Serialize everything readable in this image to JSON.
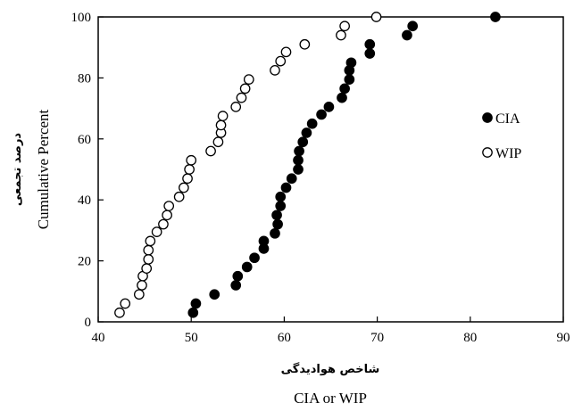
{
  "chart_data": {
    "type": "scatter",
    "xlabel": "CIA or WIP",
    "xlabel_fa": "شاخص هوادیدگی",
    "ylabel": "Cumulative Percent",
    "ylabel_fa": "درصد تجمعی",
    "xlim": [
      40,
      90
    ],
    "ylim": [
      0,
      100
    ],
    "x_ticks": [
      "40",
      "50",
      "60",
      "70",
      "80",
      "90"
    ],
    "y_ticks": [
      "0",
      "20",
      "40",
      "60",
      "80",
      "100"
    ],
    "legend_position": "right",
    "series": [
      {
        "name": "CIA",
        "marker": "filled-circle",
        "color": "#000000",
        "points": [
          [
            50.2,
            3
          ],
          [
            50.5,
            6
          ],
          [
            52.5,
            9
          ],
          [
            54.8,
            12
          ],
          [
            55.0,
            15
          ],
          [
            56.0,
            18
          ],
          [
            56.8,
            21
          ],
          [
            57.8,
            24
          ],
          [
            57.8,
            26.5
          ],
          [
            59.0,
            29
          ],
          [
            59.3,
            32
          ],
          [
            59.2,
            35
          ],
          [
            59.6,
            38
          ],
          [
            59.6,
            41
          ],
          [
            60.2,
            44
          ],
          [
            60.8,
            47
          ],
          [
            61.5,
            50
          ],
          [
            61.5,
            53
          ],
          [
            61.6,
            56
          ],
          [
            62.0,
            59
          ],
          [
            62.4,
            62
          ],
          [
            63.0,
            65
          ],
          [
            64.0,
            68
          ],
          [
            64.8,
            70.5
          ],
          [
            66.2,
            73.5
          ],
          [
            66.5,
            76.5
          ],
          [
            67.0,
            79.5
          ],
          [
            67.0,
            82.5
          ],
          [
            67.2,
            85
          ],
          [
            69.2,
            88
          ],
          [
            69.2,
            91
          ],
          [
            73.2,
            94
          ],
          [
            73.8,
            97
          ],
          [
            82.7,
            100
          ]
        ]
      },
      {
        "name": "WIP",
        "marker": "open-circle",
        "color": "#000000",
        "points": [
          [
            42.3,
            3
          ],
          [
            42.9,
            6
          ],
          [
            44.4,
            9
          ],
          [
            44.7,
            12
          ],
          [
            44.8,
            15
          ],
          [
            45.2,
            17.5
          ],
          [
            45.4,
            20.5
          ],
          [
            45.4,
            23.5
          ],
          [
            45.6,
            26.5
          ],
          [
            46.3,
            29.5
          ],
          [
            47.0,
            32
          ],
          [
            47.4,
            35
          ],
          [
            47.6,
            38
          ],
          [
            48.7,
            41
          ],
          [
            49.2,
            44
          ],
          [
            49.6,
            47
          ],
          [
            49.8,
            50
          ],
          [
            50.0,
            53
          ],
          [
            52.1,
            56
          ],
          [
            52.9,
            59
          ],
          [
            53.2,
            62
          ],
          [
            53.2,
            64.5
          ],
          [
            53.4,
            67.5
          ],
          [
            54.8,
            70.5
          ],
          [
            55.4,
            73.5
          ],
          [
            55.8,
            76.5
          ],
          [
            56.2,
            79.5
          ],
          [
            59.0,
            82.5
          ],
          [
            59.6,
            85.5
          ],
          [
            60.2,
            88.5
          ],
          [
            62.2,
            91
          ],
          [
            66.1,
            94
          ],
          [
            66.5,
            97
          ],
          [
            69.9,
            100
          ]
        ]
      }
    ]
  }
}
